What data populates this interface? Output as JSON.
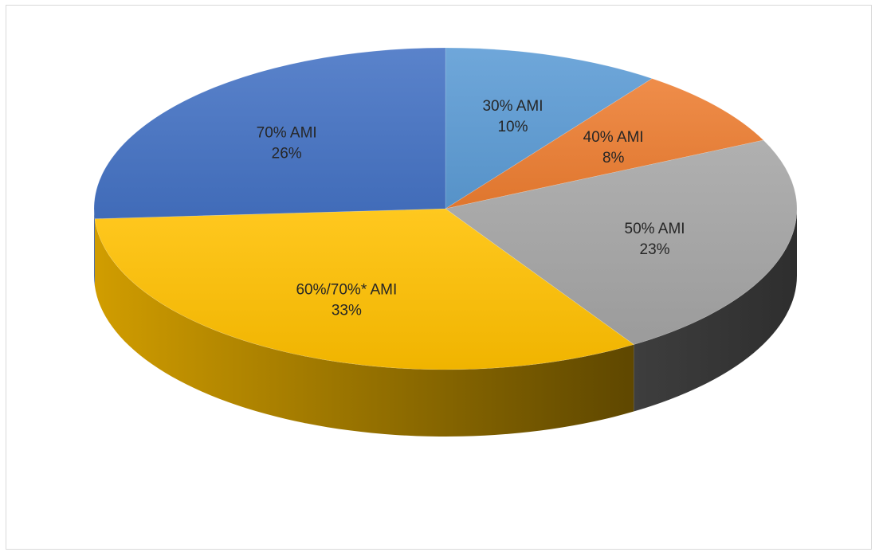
{
  "chart_data": {
    "type": "pie",
    "title": "",
    "style": "3d-exploded-none",
    "slices": [
      {
        "label": "30% AMI",
        "value": 10,
        "value_label": "10%",
        "color": "#5b9bd5"
      },
      {
        "label": "40% AMI",
        "value": 8,
        "value_label": "8%",
        "color": "#ed7d31"
      },
      {
        "label": "50% AMI",
        "value": 23,
        "value_label": "23%",
        "color": "#a5a5a5"
      },
      {
        "label": "60%/70%* AMI",
        "value": 33,
        "value_label": "33%",
        "color": "#ffc000"
      },
      {
        "label": "70% AMI",
        "value": 26,
        "value_label": "26%",
        "color": "#4472c4"
      }
    ],
    "legend": "none"
  }
}
